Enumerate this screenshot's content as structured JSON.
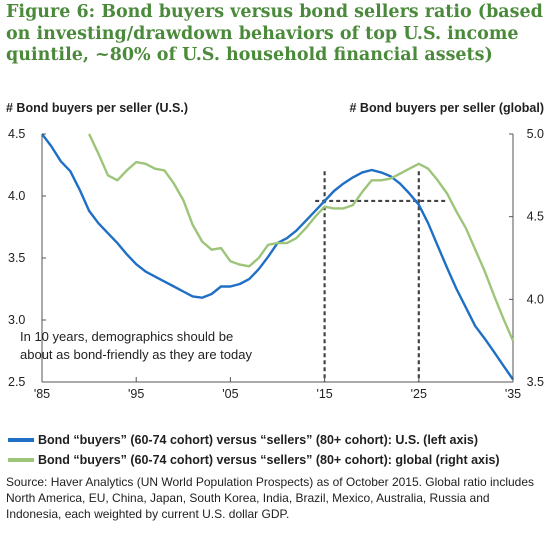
{
  "title": "Figure 6: Bond buyers versus bond sellers ratio (based on investing/drawdown behaviors of top U.S. income quintile, ~80% of U.S. household financial assets)",
  "left_axis_title": "# Bond buyers per seller (U.S.)",
  "right_axis_title": "# Bond buyers per seller (global)",
  "annotation": [
    "In 10 years, demographics should be",
    "about as bond-friendly as they are today"
  ],
  "legend": [
    {
      "label": "Bond “buyers” (60-74 cohort) versus “sellers” (80+ cohort): U.S. (left axis)",
      "color": "#1f6fc5"
    },
    {
      "label": "Bond “buyers” (60-74 cohort) versus “sellers” (80+ cohort): global (right axis)",
      "color": "#9dc57a"
    }
  ],
  "source": "Source: Haver Analytics (UN World Population Prospects) as of October 2015. Global ratio includes North America, EU, China, Japan, South Korea, India, Brazil, Mexico, Australia, Russia and Indonesia, each weighted by current U.S. dollar GDP.",
  "chart_data": {
    "type": "line",
    "x_tick_labels": [
      "'85",
      "'95",
      "'05",
      "'15",
      "'25",
      "'35"
    ],
    "x_ticks": [
      1985,
      1995,
      2005,
      2015,
      2025,
      2035
    ],
    "xlim": [
      1985,
      2035
    ],
    "left_axis": {
      "ylim": [
        2.5,
        4.5
      ],
      "ticks": [
        2.5,
        3.0,
        3.5,
        4.0,
        4.5
      ],
      "tick_labels": [
        "2.5",
        "3.0",
        "3.5",
        "4.0",
        "4.5"
      ]
    },
    "right_axis": {
      "ylim": [
        3.5,
        5.0
      ],
      "ticks": [
        3.5,
        4.0,
        4.5,
        5.0
      ],
      "tick_labels": [
        "3.5",
        "4.0",
        "4.5",
        "5.0"
      ]
    },
    "series": [
      {
        "name": "Bond “buyers” (60-74 cohort) versus “sellers” (80+ cohort): U.S. (left axis)",
        "axis": "left",
        "color": "#1f6fc5",
        "points": [
          [
            1985,
            4.5
          ],
          [
            1986,
            4.4
          ],
          [
            1987,
            4.28
          ],
          [
            1988,
            4.2
          ],
          [
            1989,
            4.05
          ],
          [
            1990,
            3.88
          ],
          [
            1991,
            3.78
          ],
          [
            1992,
            3.7
          ],
          [
            1993,
            3.62
          ],
          [
            1994,
            3.53
          ],
          [
            1995,
            3.45
          ],
          [
            1996,
            3.39
          ],
          [
            1997,
            3.35
          ],
          [
            1998,
            3.31
          ],
          [
            1999,
            3.27
          ],
          [
            2000,
            3.23
          ],
          [
            2001,
            3.19
          ],
          [
            2002,
            3.18
          ],
          [
            2003,
            3.21
          ],
          [
            2004,
            3.27
          ],
          [
            2005,
            3.27
          ],
          [
            2006,
            3.29
          ],
          [
            2007,
            3.33
          ],
          [
            2008,
            3.41
          ],
          [
            2009,
            3.51
          ],
          [
            2010,
            3.62
          ],
          [
            2011,
            3.66
          ],
          [
            2012,
            3.72
          ],
          [
            2013,
            3.8
          ],
          [
            2014,
            3.88
          ],
          [
            2015,
            3.96
          ],
          [
            2016,
            4.04
          ],
          [
            2017,
            4.1
          ],
          [
            2018,
            4.15
          ],
          [
            2019,
            4.19
          ],
          [
            2020,
            4.21
          ],
          [
            2021,
            4.19
          ],
          [
            2022,
            4.16
          ],
          [
            2023,
            4.1
          ],
          [
            2024,
            4.02
          ],
          [
            2025,
            3.93
          ],
          [
            2026,
            3.78
          ],
          [
            2027,
            3.6
          ],
          [
            2028,
            3.42
          ],
          [
            2029,
            3.25
          ],
          [
            2030,
            3.1
          ],
          [
            2031,
            2.95
          ],
          [
            2032,
            2.85
          ],
          [
            2033,
            2.74
          ],
          [
            2034,
            2.63
          ],
          [
            2035,
            2.52
          ]
        ]
      },
      {
        "name": "Bond “buyers” (60-74 cohort) versus “sellers” (80+ cohort): global (right axis)",
        "axis": "right",
        "color": "#9dc57a",
        "points": [
          [
            1990,
            5.0
          ],
          [
            1991,
            4.88
          ],
          [
            1992,
            4.75
          ],
          [
            1993,
            4.72
          ],
          [
            1994,
            4.78
          ],
          [
            1995,
            4.83
          ],
          [
            1996,
            4.82
          ],
          [
            1997,
            4.79
          ],
          [
            1998,
            4.78
          ],
          [
            1999,
            4.7
          ],
          [
            2000,
            4.6
          ],
          [
            2001,
            4.45
          ],
          [
            2002,
            4.35
          ],
          [
            2003,
            4.3
          ],
          [
            2004,
            4.31
          ],
          [
            2005,
            4.23
          ],
          [
            2006,
            4.21
          ],
          [
            2007,
            4.2
          ],
          [
            2008,
            4.25
          ],
          [
            2009,
            4.33
          ],
          [
            2010,
            4.34
          ],
          [
            2011,
            4.34
          ],
          [
            2012,
            4.37
          ],
          [
            2013,
            4.43
          ],
          [
            2014,
            4.5
          ],
          [
            2015,
            4.56
          ],
          [
            2016,
            4.55
          ],
          [
            2017,
            4.55
          ],
          [
            2018,
            4.57
          ],
          [
            2019,
            4.65
          ],
          [
            2020,
            4.72
          ],
          [
            2021,
            4.72
          ],
          [
            2022,
            4.73
          ],
          [
            2023,
            4.76
          ],
          [
            2024,
            4.79
          ],
          [
            2025,
            4.82
          ],
          [
            2026,
            4.79
          ],
          [
            2027,
            4.72
          ],
          [
            2028,
            4.64
          ],
          [
            2029,
            4.53
          ],
          [
            2030,
            4.43
          ],
          [
            2031,
            4.3
          ],
          [
            2032,
            4.17
          ],
          [
            2033,
            4.02
          ],
          [
            2034,
            3.88
          ],
          [
            2035,
            3.75
          ]
        ]
      }
    ],
    "reference_lines": {
      "vertical_x": [
        2015,
        2025
      ],
      "horizontal_left_y": 3.96
    }
  }
}
